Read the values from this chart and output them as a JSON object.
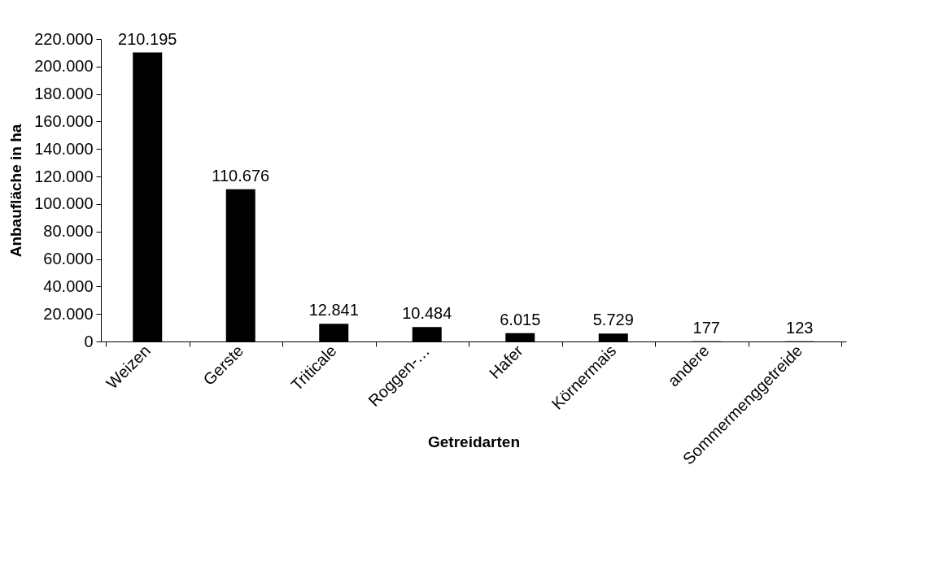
{
  "chart_data": {
    "type": "bar",
    "xlabel": "Getreidarten",
    "ylabel": "Anbaufläche in ha",
    "categories": [
      "Weizen",
      "Gerste",
      "Triticale",
      "Roggen-…",
      "Hafer",
      "Körnermais",
      "andere",
      "Sommermenggetreide"
    ],
    "values": [
      210195,
      110676,
      12841,
      10484,
      6015,
      5729,
      177,
      123
    ],
    "value_labels": [
      "210.195",
      "110.676",
      "12.841",
      "10.484",
      "6.015",
      "5.729",
      "177",
      "123"
    ],
    "color": "#000000",
    "ylim": [
      0,
      220000
    ],
    "yticks": [
      0,
      {
        "value": 20000,
        "label": "20.000"
      },
      {
        "value": 40000,
        "label": "40.000"
      },
      {
        "value": 60000,
        "label": "60.000"
      },
      {
        "value": 80000,
        "label": "80.000"
      },
      {
        "value": 100000,
        "label": "100.000"
      },
      {
        "value": 120000,
        "label": "120.000"
      },
      {
        "value": 140000,
        "label": "140.000"
      },
      {
        "value": 160000,
        "label": "160.000"
      },
      {
        "value": 180000,
        "label": "180.000"
      },
      {
        "value": 200000,
        "label": "200.000"
      },
      {
        "value": 220000,
        "label": "220.000"
      }
    ],
    "grid": false
  }
}
